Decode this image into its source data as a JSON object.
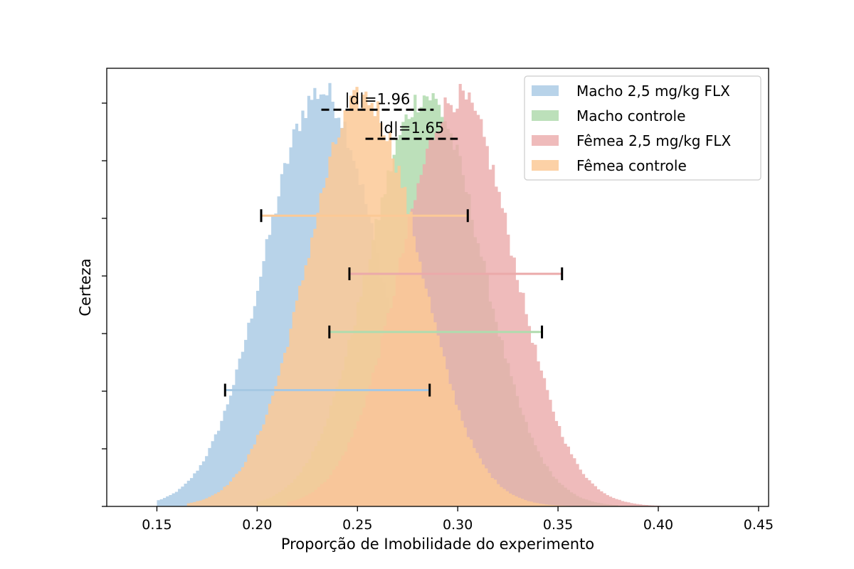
{
  "chart_data": {
    "type": "histogram",
    "title": "",
    "xlabel": "Proporção de Imobilidade do experimento",
    "ylabel": "Certeza",
    "xlim": [
      0.125,
      0.455
    ],
    "x_ticks": [
      0.15,
      0.2,
      0.25,
      0.3,
      0.35,
      0.4,
      0.45
    ],
    "x_tick_labels": [
      "0.15",
      "0.20",
      "0.25",
      "0.30",
      "0.35",
      "0.40",
      "0.45"
    ],
    "y_tick_labels_shown": false,
    "grid": false,
    "legend_position": "top-right",
    "series": [
      {
        "name": "Macho 2,5 mg/kg FLX",
        "color": "#a6c8e3",
        "opacity": 0.8,
        "mean": 0.232,
        "sd": 0.028,
        "peak_relative": 1.0,
        "range": [
          0.15,
          0.36
        ],
        "interval": [
          0.184,
          0.286
        ],
        "interval_level_relative": 0.28
      },
      {
        "name": "Macho controle",
        "color": "#b0dbae",
        "opacity": 0.85,
        "mean": 0.284,
        "sd": 0.028,
        "peak_relative": 0.99,
        "range": [
          0.2,
          0.38
        ],
        "interval": [
          0.236,
          0.342
        ],
        "interval_level_relative": 0.42
      },
      {
        "name": "Fêmea 2,5 mg/kg FLX",
        "color": "#ebaaaa",
        "opacity": 0.8,
        "mean": 0.3,
        "sd": 0.028,
        "peak_relative": 0.985,
        "range": [
          0.215,
          0.4
        ],
        "interval": [
          0.246,
          0.352
        ],
        "interval_level_relative": 0.56
      },
      {
        "name": "Fêmea controle",
        "color": "#fcc996",
        "opacity": 0.85,
        "mean": 0.253,
        "sd": 0.028,
        "peak_relative": 0.985,
        "range": [
          0.165,
          0.36
        ],
        "interval": [
          0.202,
          0.305
        ],
        "interval_level_relative": 0.7
      }
    ],
    "annotations": [
      {
        "label": "|d|=1.96",
        "x_range": [
          0.232,
          0.288
        ],
        "level_relative": 0.955
      },
      {
        "label": "|d|=1.65",
        "x_range": [
          0.254,
          0.3
        ],
        "level_relative": 0.885
      }
    ]
  }
}
